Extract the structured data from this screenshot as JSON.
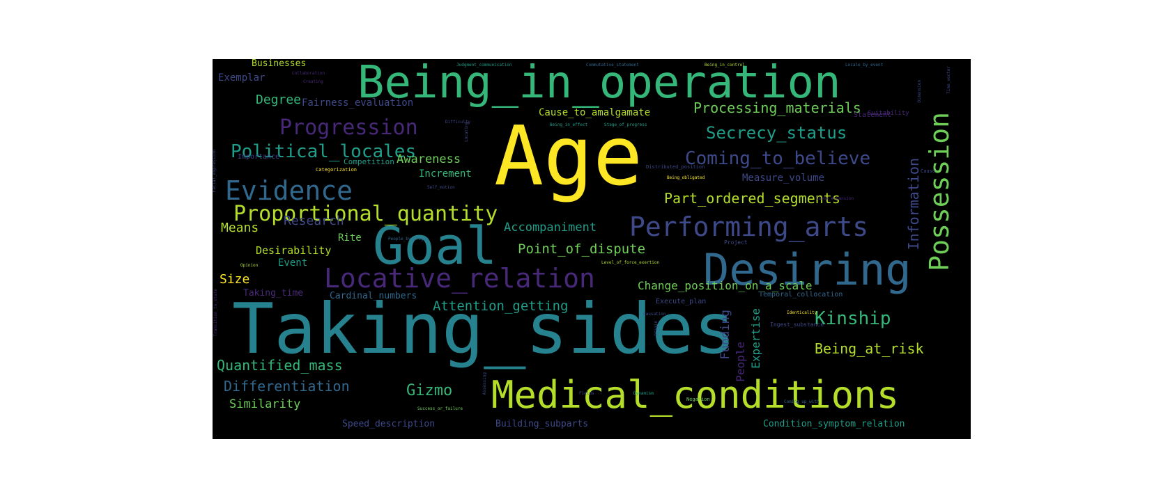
{
  "palette": {
    "yellow": "#fde725",
    "lime": "#b5de2b",
    "green": "#6ece58",
    "aqua": "#35b779",
    "teal": "#1f9e89",
    "cyan": "#26828e",
    "steel": "#31688e",
    "indigo": "#3e4989",
    "purple": "#482878",
    "dark": "#440154"
  },
  "words": [
    {
      "text": "Age",
      "color": "yellow"
    },
    {
      "text": "Taking_sides",
      "color": "cyan"
    },
    {
      "text": "Being_in_operation",
      "color": "aqua"
    },
    {
      "text": "Goal",
      "color": "cyan"
    },
    {
      "text": "Medical_conditions",
      "color": "lime"
    },
    {
      "text": "Desiring",
      "color": "steel"
    },
    {
      "text": "Possession",
      "color": "green"
    },
    {
      "text": "Locative_relation",
      "color": "purple"
    },
    {
      "text": "Performing_arts",
      "color": "indigo"
    },
    {
      "text": "Evidence",
      "color": "steel"
    },
    {
      "text": "Proportional_quantity",
      "color": "lime"
    },
    {
      "text": "Progression",
      "color": "purple"
    },
    {
      "text": "Political_locales",
      "color": "teal"
    },
    {
      "text": "Coming_to_believe",
      "color": "indigo"
    },
    {
      "text": "Secrecy_status",
      "color": "teal"
    },
    {
      "text": "Kinship",
      "color": "aqua"
    },
    {
      "text": "Information",
      "color": "indigo"
    },
    {
      "text": "Processing_materials",
      "color": "green"
    },
    {
      "text": "Part_ordered_segments",
      "color": "lime"
    },
    {
      "text": "Change_position_on_a_scale",
      "color": "green"
    },
    {
      "text": "Point_of_dispute",
      "color": "green"
    },
    {
      "text": "Accompaniment",
      "color": "teal"
    },
    {
      "text": "Attention_getting",
      "color": "teal"
    },
    {
      "text": "Quantified_mass",
      "color": "aqua"
    },
    {
      "text": "Differentiation",
      "color": "steel"
    },
    {
      "text": "Gizmo",
      "color": "aqua"
    },
    {
      "text": "Similarity",
      "color": "green"
    },
    {
      "text": "Being_at_risk",
      "color": "lime"
    },
    {
      "text": "Degree",
      "color": "aqua"
    },
    {
      "text": "Fairness_evaluation",
      "color": "indigo"
    },
    {
      "text": "Cause_to_amalgamate",
      "color": "lime"
    },
    {
      "text": "Research",
      "color": "indigo"
    },
    {
      "text": "Means",
      "color": "lime"
    },
    {
      "text": "Rite",
      "color": "green"
    },
    {
      "text": "Desirability",
      "color": "lime"
    },
    {
      "text": "Event",
      "color": "teal"
    },
    {
      "text": "Size",
      "color": "yellow"
    },
    {
      "text": "Awareness",
      "color": "green"
    },
    {
      "text": "Increment",
      "color": "aqua"
    },
    {
      "text": "Measure_volume",
      "color": "indigo"
    },
    {
      "text": "Funding",
      "color": "indigo"
    },
    {
      "text": "Expertise",
      "color": "teal"
    },
    {
      "text": "People",
      "color": "purple"
    },
    {
      "text": "Businesses",
      "color": "lime"
    },
    {
      "text": "Exemplar",
      "color": "indigo"
    },
    {
      "text": "Speed_description",
      "color": "indigo"
    },
    {
      "text": "Building_subparts",
      "color": "indigo"
    },
    {
      "text": "Condition_symptom_relation",
      "color": "teal"
    },
    {
      "text": "Cardinal_numbers",
      "color": "steel"
    },
    {
      "text": "Taking_time",
      "color": "purple"
    },
    {
      "text": "Competition",
      "color": "teal"
    },
    {
      "text": "Importance",
      "color": "indigo"
    },
    {
      "text": "Categorization",
      "color": "yellow"
    },
    {
      "text": "Statement",
      "color": "purple"
    },
    {
      "text": "Suitability",
      "color": "purple"
    },
    {
      "text": "Project",
      "color": "indigo"
    },
    {
      "text": "Judgment_communication",
      "color": "teal"
    },
    {
      "text": "Commutative_statement",
      "color": "steel"
    },
    {
      "text": "Being_in_control",
      "color": "lime"
    },
    {
      "text": "Locale_by_event",
      "color": "steel"
    },
    {
      "text": "Time_vector",
      "color": "indigo"
    },
    {
      "text": "Collaboration",
      "color": "purple"
    },
    {
      "text": "Creating",
      "color": "purple"
    },
    {
      "text": "Difficulty",
      "color": "indigo"
    },
    {
      "text": "Being_in_effect",
      "color": "teal"
    },
    {
      "text": "Stage_of_progress",
      "color": "teal"
    },
    {
      "text": "Distributed_position",
      "color": "indigo"
    },
    {
      "text": "Being_obligated",
      "color": "yellow"
    },
    {
      "text": "Cause_expansion",
      "color": "purple"
    },
    {
      "text": "Self_motion",
      "color": "indigo"
    },
    {
      "text": "People_by_origin",
      "color": "steel"
    },
    {
      "text": "Level_of_force_exertion",
      "color": "lime"
    },
    {
      "text": "Opinion",
      "color": "lime"
    },
    {
      "text": "Execute_plan",
      "color": "indigo"
    },
    {
      "text": "Temporal_collocation",
      "color": "steel"
    },
    {
      "text": "Identicality",
      "color": "yellow"
    },
    {
      "text": "Ingest_substance",
      "color": "indigo"
    },
    {
      "text": "Causation",
      "color": "indigo"
    },
    {
      "text": "Coming_up_with",
      "color": "steel"
    },
    {
      "text": "Negation",
      "color": "green"
    },
    {
      "text": "Dynamism",
      "color": "teal"
    },
    {
      "text": "Fields",
      "color": "indigo"
    },
    {
      "text": "Success_or_failure",
      "color": "green"
    },
    {
      "text": "Assessing",
      "color": "indigo"
    },
    {
      "text": "Facial_expression",
      "color": "indigo"
    },
    {
      "text": "Transition_to_state",
      "color": "purple"
    },
    {
      "text": "Locating",
      "color": "indigo"
    },
    {
      "text": "Origin",
      "color": "indigo"
    },
    {
      "text": "Dimension",
      "color": "indigo"
    },
    {
      "text": "Cause",
      "color": "indigo"
    }
  ]
}
